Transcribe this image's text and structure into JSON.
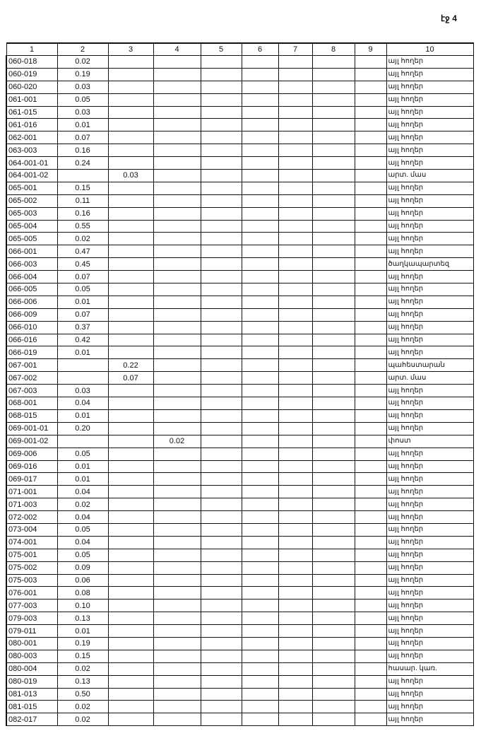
{
  "page_label": "էջ 4",
  "table": {
    "headers": [
      "1",
      "2",
      "3",
      "4",
      "5",
      "6",
      "7",
      "8",
      "9",
      "10"
    ],
    "rows": [
      [
        "060-018",
        "0.02",
        "",
        "",
        "",
        "",
        "",
        "",
        "",
        "այլ հողեր"
      ],
      [
        "060-019",
        "0.19",
        "",
        "",
        "",
        "",
        "",
        "",
        "",
        "այլ հողեր"
      ],
      [
        "060-020",
        "0.03",
        "",
        "",
        "",
        "",
        "",
        "",
        "",
        "այլ հողեր"
      ],
      [
        "061-001",
        "0.05",
        "",
        "",
        "",
        "",
        "",
        "",
        "",
        "այլ հողեր"
      ],
      [
        "061-015",
        "0.03",
        "",
        "",
        "",
        "",
        "",
        "",
        "",
        "այլ հողեր"
      ],
      [
        "061-016",
        "0.01",
        "",
        "",
        "",
        "",
        "",
        "",
        "",
        "այլ հողեր"
      ],
      [
        "062-001",
        "0.07",
        "",
        "",
        "",
        "",
        "",
        "",
        "",
        "այլ հողեր"
      ],
      [
        "063-003",
        "0.16",
        "",
        "",
        "",
        "",
        "",
        "",
        "",
        "այլ հողեր"
      ],
      [
        "064-001-01",
        "0.24",
        "",
        "",
        "",
        "",
        "",
        "",
        "",
        "այլ հողեր"
      ],
      [
        "064-001-02",
        "",
        "0.03",
        "",
        "",
        "",
        "",
        "",
        "",
        "արտ. մաս"
      ],
      [
        "065-001",
        "0.15",
        "",
        "",
        "",
        "",
        "",
        "",
        "",
        "այլ հողեր"
      ],
      [
        "065-002",
        "0.11",
        "",
        "",
        "",
        "",
        "",
        "",
        "",
        "այլ հողեր"
      ],
      [
        "065-003",
        "0.16",
        "",
        "",
        "",
        "",
        "",
        "",
        "",
        "այլ հողեր"
      ],
      [
        "065-004",
        "0.55",
        "",
        "",
        "",
        "",
        "",
        "",
        "",
        "այլ հողեր"
      ],
      [
        "065-005",
        "0.02",
        "",
        "",
        "",
        "",
        "",
        "",
        "",
        "այլ հողեր"
      ],
      [
        "066-001",
        "0.47",
        "",
        "",
        "",
        "",
        "",
        "",
        "",
        "այլ հողեր"
      ],
      [
        "066-003",
        "0.45",
        "",
        "",
        "",
        "",
        "",
        "",
        "",
        "ծաղկապարտեզ"
      ],
      [
        "066-004",
        "0.07",
        "",
        "",
        "",
        "",
        "",
        "",
        "",
        "այլ հողեր"
      ],
      [
        "066-005",
        "0.05",
        "",
        "",
        "",
        "",
        "",
        "",
        "",
        "այլ հողեր"
      ],
      [
        "066-006",
        "0.01",
        "",
        "",
        "",
        "",
        "",
        "",
        "",
        "այլ հողեր"
      ],
      [
        "066-009",
        "0.07",
        "",
        "",
        "",
        "",
        "",
        "",
        "",
        "այլ հողեր"
      ],
      [
        "066-010",
        "0.37",
        "",
        "",
        "",
        "",
        "",
        "",
        "",
        "այլ հողեր"
      ],
      [
        "066-016",
        "0.42",
        "",
        "",
        "",
        "",
        "",
        "",
        "",
        "այլ հողեր"
      ],
      [
        "066-019",
        "0.01",
        "",
        "",
        "",
        "",
        "",
        "",
        "",
        "այլ հողեր"
      ],
      [
        "067-001",
        "",
        "0.22",
        "",
        "",
        "",
        "",
        "",
        "",
        "պահեստարան"
      ],
      [
        "067-002",
        "",
        "0.07",
        "",
        "",
        "",
        "",
        "",
        "",
        "արտ. մաս"
      ],
      [
        "067-003",
        "0.03",
        "",
        "",
        "",
        "",
        "",
        "",
        "",
        "այլ հողեր"
      ],
      [
        "068-001",
        "0.04",
        "",
        "",
        "",
        "",
        "",
        "",
        "",
        "այլ հողեր"
      ],
      [
        "068-015",
        "0.01",
        "",
        "",
        "",
        "",
        "",
        "",
        "",
        "այլ հողեր"
      ],
      [
        "069-001-01",
        "0.20",
        "",
        "",
        "",
        "",
        "",
        "",
        "",
        "այլ հողեր"
      ],
      [
        "069-001-02",
        "",
        "",
        "0.02",
        "",
        "",
        "",
        "",
        "",
        "փոստ"
      ],
      [
        "069-006",
        "0.05",
        "",
        "",
        "",
        "",
        "",
        "",
        "",
        "այլ հողեր"
      ],
      [
        "069-016",
        "0.01",
        "",
        "",
        "",
        "",
        "",
        "",
        "",
        "այլ հողեր"
      ],
      [
        "069-017",
        "0.01",
        "",
        "",
        "",
        "",
        "",
        "",
        "",
        "այլ հողեր"
      ],
      [
        "071-001",
        "0.04",
        "",
        "",
        "",
        "",
        "",
        "",
        "",
        "այլ հողեր"
      ],
      [
        "071-003",
        "0.02",
        "",
        "",
        "",
        "",
        "",
        "",
        "",
        "այլ հողեր"
      ],
      [
        "072-002",
        "0.04",
        "",
        "",
        "",
        "",
        "",
        "",
        "",
        "այլ հողեր"
      ],
      [
        "073-004",
        "0.05",
        "",
        "",
        "",
        "",
        "",
        "",
        "",
        "այլ հողեր"
      ],
      [
        "074-001",
        "0.04",
        "",
        "",
        "",
        "",
        "",
        "",
        "",
        "այլ հողեր"
      ],
      [
        "075-001",
        "0.05",
        "",
        "",
        "",
        "",
        "",
        "",
        "",
        "այլ հողեր"
      ],
      [
        "075-002",
        "0.09",
        "",
        "",
        "",
        "",
        "",
        "",
        "",
        "այլ հողեր"
      ],
      [
        "075-003",
        "0.06",
        "",
        "",
        "",
        "",
        "",
        "",
        "",
        "այլ հողեր"
      ],
      [
        "076-001",
        "0.08",
        "",
        "",
        "",
        "",
        "",
        "",
        "",
        "այլ հողեր"
      ],
      [
        "077-003",
        "0.10",
        "",
        "",
        "",
        "",
        "",
        "",
        "",
        "այլ հողեր"
      ],
      [
        "079-003",
        "0.13",
        "",
        "",
        "",
        "",
        "",
        "",
        "",
        "այլ հողեր"
      ],
      [
        "079-011",
        "0.01",
        "",
        "",
        "",
        "",
        "",
        "",
        "",
        "այլ հողեր"
      ],
      [
        "080-001",
        "0.19",
        "",
        "",
        "",
        "",
        "",
        "",
        "",
        "այլ հողեր"
      ],
      [
        "080-003",
        "0.15",
        "",
        "",
        "",
        "",
        "",
        "",
        "",
        "այլ հողեր"
      ],
      [
        "080-004",
        "0.02",
        "",
        "",
        "",
        "",
        "",
        "",
        "",
        "հասար. կառ."
      ],
      [
        "080-019",
        "0.13",
        "",
        "",
        "",
        "",
        "",
        "",
        "",
        "այլ հողեր"
      ],
      [
        "081-013",
        "0.50",
        "",
        "",
        "",
        "",
        "",
        "",
        "",
        "այլ հողեր"
      ],
      [
        "081-015",
        "0.02",
        "",
        "",
        "",
        "",
        "",
        "",
        "",
        "այլ հողեր"
      ],
      [
        "082-017",
        "0.02",
        "",
        "",
        "",
        "",
        "",
        "",
        "",
        "այլ հողեր"
      ]
    ]
  }
}
